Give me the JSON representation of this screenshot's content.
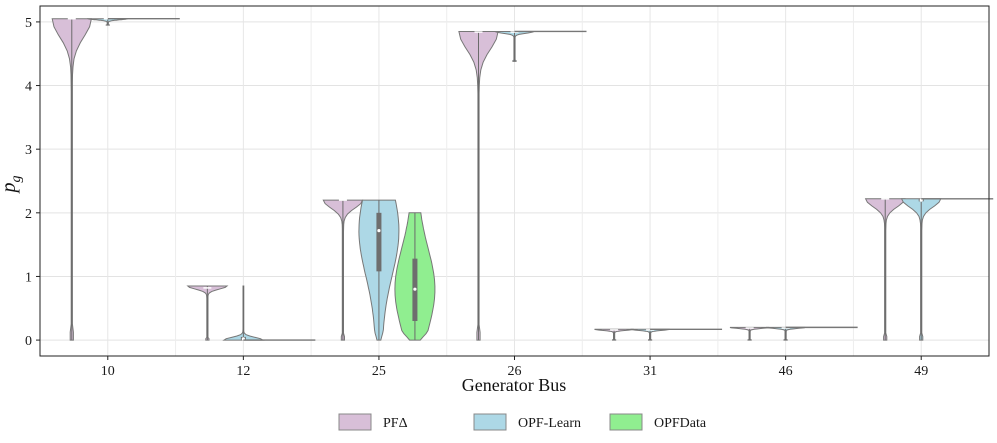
{
  "chart_data": {
    "type": "violin",
    "title": "",
    "xlabel": "Generator Bus",
    "ylabel": "p_g",
    "ylim": [
      -0.25,
      5.25
    ],
    "yticks": [
      0,
      1,
      2,
      3,
      4,
      5
    ],
    "categories": [
      "10",
      "12",
      "25",
      "26",
      "31",
      "46",
      "49"
    ],
    "grid": true,
    "legend_position": "bottom",
    "series": [
      {
        "name": "PFΔ",
        "color": "#d8bfd8",
        "violins": [
          {
            "category": "10",
            "min": 0.0,
            "max": 5.05,
            "median": 5.05,
            "q1": 5.05,
            "q3": 5.05
          },
          {
            "category": "12",
            "min": 0.0,
            "max": 0.85,
            "median": 0.82,
            "q1": 0.82,
            "q3": 0.83
          },
          {
            "category": "25",
            "min": 0.0,
            "max": 2.2,
            "median": 2.2,
            "q1": 2.2,
            "q3": 2.2
          },
          {
            "category": "26",
            "min": 0.0,
            "max": 4.85,
            "median": 4.84,
            "q1": 4.84,
            "q3": 4.84
          },
          {
            "category": "31",
            "min": 0.0,
            "max": 0.17,
            "median": 0.16,
            "q1": 0.16,
            "q3": 0.16
          },
          {
            "category": "46",
            "min": 0.0,
            "max": 0.2,
            "median": 0.19,
            "q1": 0.19,
            "q3": 0.19
          },
          {
            "category": "49",
            "min": 0.0,
            "max": 2.22,
            "median": 2.22,
            "q1": 2.22,
            "q3": 2.22
          }
        ]
      },
      {
        "name": "OPF-Learn",
        "color": "#add8e6",
        "violins": [
          {
            "category": "10",
            "min": 4.95,
            "max": 5.05,
            "median": 5.05,
            "q1": 5.05,
            "q3": 5.05
          },
          {
            "category": "12",
            "min": 0.0,
            "max": 0.85,
            "median": 0.02,
            "q1": 0.0,
            "q3": 0.05
          },
          {
            "category": "25",
            "min": 0.0,
            "max": 2.2,
            "median": 1.72,
            "q1": 1.08,
            "q3": 2.0
          },
          {
            "category": "26",
            "min": 4.38,
            "max": 4.85,
            "median": 4.84,
            "q1": 4.84,
            "q3": 4.84
          },
          {
            "category": "31",
            "min": 0.0,
            "max": 0.17,
            "median": 0.16,
            "q1": 0.16,
            "q3": 0.16
          },
          {
            "category": "46",
            "min": 0.0,
            "max": 0.2,
            "median": 0.19,
            "q1": 0.19,
            "q3": 0.19
          },
          {
            "category": "49",
            "min": 0.0,
            "max": 2.22,
            "median": 2.2,
            "q1": 2.18,
            "q3": 2.22
          }
        ]
      },
      {
        "name": "OPFData",
        "color": "#90ee90",
        "violins": [
          {
            "category": "10",
            "min": 5.05,
            "max": 5.05,
            "median": 5.05,
            "q1": 5.05,
            "q3": 5.05
          },
          {
            "category": "12",
            "min": 0.0,
            "max": 0.0,
            "median": 0.0,
            "q1": 0.0,
            "q3": 0.0
          },
          {
            "category": "25",
            "min": 0.0,
            "max": 2.0,
            "median": 0.8,
            "q1": 0.3,
            "q3": 1.28
          },
          {
            "category": "26",
            "min": 4.85,
            "max": 4.85,
            "median": 4.85,
            "q1": 4.85,
            "q3": 4.85
          },
          {
            "category": "31",
            "min": 0.17,
            "max": 0.17,
            "median": 0.17,
            "q1": 0.17,
            "q3": 0.17
          },
          {
            "category": "46",
            "min": 0.2,
            "max": 0.2,
            "median": 0.2,
            "q1": 0.2,
            "q3": 0.2
          },
          {
            "category": "49",
            "min": 2.22,
            "max": 2.22,
            "median": 2.22,
            "q1": 2.22,
            "q3": 2.22
          }
        ]
      }
    ]
  }
}
